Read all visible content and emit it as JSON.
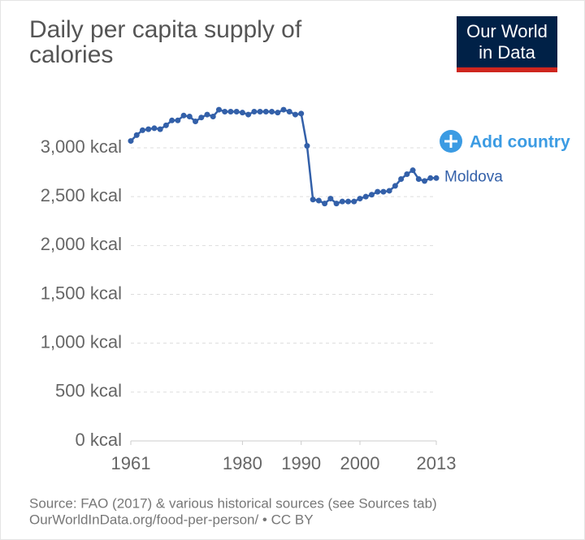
{
  "chart_data": {
    "type": "line",
    "title": "Daily per capita supply of calories",
    "logo": [
      "Our World",
      "in Data"
    ],
    "add_button": "Add country",
    "source": "Source: FAO (2017) & various historical sources (see Sources tab)",
    "url": "OurWorldInData.org/food-per-person/ • CC BY",
    "x": [
      1961,
      1962,
      1963,
      1964,
      1965,
      1966,
      1967,
      1968,
      1969,
      1970,
      1971,
      1972,
      1973,
      1974,
      1975,
      1976,
      1977,
      1978,
      1979,
      1980,
      1981,
      1982,
      1983,
      1984,
      1985,
      1986,
      1987,
      1988,
      1989,
      1990,
      1991,
      1992,
      1993,
      1994,
      1995,
      1996,
      1997,
      1998,
      1999,
      2000,
      2001,
      2002,
      2003,
      2004,
      2005,
      2006,
      2007,
      2008,
      2009,
      2010,
      2011,
      2012,
      2013
    ],
    "series": [
      {
        "name": "Moldova",
        "color": "#3360a9",
        "values": [
          3070,
          3130,
          3180,
          3190,
          3200,
          3190,
          3230,
          3280,
          3280,
          3330,
          3320,
          3270,
          3310,
          3340,
          3320,
          3390,
          3370,
          3370,
          3370,
          3360,
          3340,
          3370,
          3370,
          3370,
          3370,
          3360,
          3390,
          3370,
          3340,
          3350,
          3020,
          2470,
          2460,
          2430,
          2480,
          2430,
          2450,
          2450,
          2450,
          2480,
          2500,
          2520,
          2550,
          2550,
          2560,
          2610,
          2680,
          2730,
          2770,
          2680,
          2660,
          2690,
          2690
        ]
      }
    ],
    "xlim": [
      1961,
      2013
    ],
    "xticks": [
      1961,
      1980,
      1990,
      2000,
      2013
    ],
    "ylim": [
      0,
      3400
    ],
    "yticks": [
      {
        "value": 0,
        "label": "0 kcal"
      },
      {
        "value": 500,
        "label": "500 kcal"
      },
      {
        "value": 1000,
        "label": "1,000 kcal"
      },
      {
        "value": 1500,
        "label": "1,500 kcal"
      },
      {
        "value": 2000,
        "label": "2,000 kcal"
      },
      {
        "value": 2500,
        "label": "2,500 kcal"
      },
      {
        "value": 3000,
        "label": "3,000 kcal"
      }
    ],
    "grid": true
  }
}
